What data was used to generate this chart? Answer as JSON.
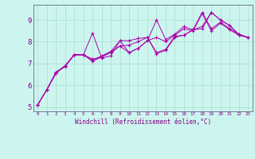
{
  "xlabel": "Windchill (Refroidissement éolien,°C)",
  "background_color": "#cdf5ef",
  "line_color": "#aa00aa",
  "xlim": [
    -0.5,
    23.5
  ],
  "ylim": [
    4.8,
    9.7
  ],
  "xticks": [
    0,
    1,
    2,
    3,
    4,
    5,
    6,
    7,
    8,
    9,
    10,
    11,
    12,
    13,
    14,
    15,
    16,
    17,
    18,
    19,
    20,
    21,
    22,
    23
  ],
  "yticks": [
    5,
    6,
    7,
    8,
    9
  ],
  "series": [
    [
      5.1,
      5.8,
      6.6,
      6.9,
      7.4,
      7.4,
      8.4,
      7.25,
      7.35,
      8.05,
      8.05,
      8.15,
      8.2,
      7.45,
      7.6,
      8.2,
      8.3,
      8.55,
      8.7,
      9.35,
      9.0,
      8.75,
      8.3,
      8.2
    ],
    [
      5.1,
      5.8,
      6.6,
      6.85,
      7.4,
      7.4,
      7.2,
      7.3,
      7.55,
      7.8,
      7.85,
      8.0,
      8.2,
      7.5,
      7.65,
      8.25,
      8.3,
      8.55,
      8.6,
      9.35,
      9.0,
      8.75,
      8.35,
      8.2
    ],
    [
      5.1,
      5.8,
      6.55,
      6.9,
      7.4,
      7.4,
      7.15,
      7.35,
      7.55,
      8.05,
      7.5,
      7.7,
      8.05,
      9.0,
      8.1,
      8.35,
      8.7,
      8.55,
      9.35,
      8.6,
      8.9,
      8.6,
      8.35,
      8.2
    ],
    [
      5.1,
      5.8,
      6.55,
      6.9,
      7.4,
      7.4,
      7.1,
      7.3,
      7.5,
      7.8,
      7.5,
      7.7,
      8.05,
      8.2,
      8.0,
      8.3,
      8.6,
      8.5,
      9.3,
      8.5,
      8.85,
      8.55,
      8.3,
      8.2
    ]
  ],
  "grid_color": "#aaddcc",
  "tick_color": "#880088",
  "spine_color": "#666688"
}
